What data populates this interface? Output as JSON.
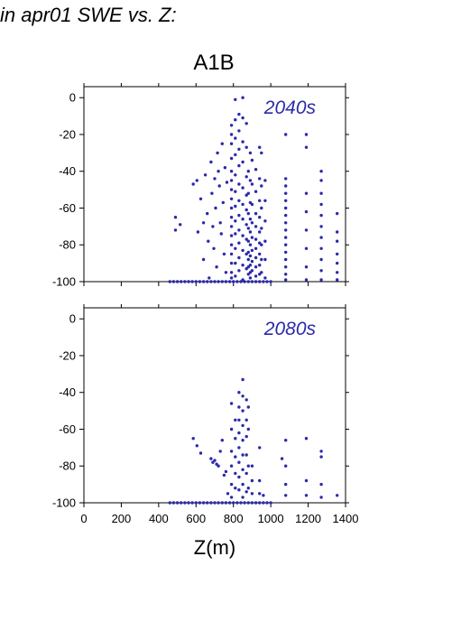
{
  "header": "in apr01 SWE vs. Z:",
  "chart_data": {
    "type": "scatter",
    "title": "A1B",
    "xlabel": "Z(m)",
    "ylabel": "",
    "xlim": [
      0,
      1400
    ],
    "ylim": [
      -100,
      6
    ],
    "x_ticks": [
      "0",
      "200",
      "400",
      "600",
      "800",
      "1000",
      "1200",
      "1400"
    ],
    "y_ticks": [
      "0",
      "-20",
      "-40",
      "-60",
      "-80",
      "-100"
    ],
    "point_color": "#2a2aaa",
    "panels": [
      {
        "label": "2040s",
        "points": [
          [
            460,
            -100
          ],
          [
            480,
            -100
          ],
          [
            500,
            -100
          ],
          [
            520,
            -100
          ],
          [
            540,
            -100
          ],
          [
            560,
            -100
          ],
          [
            580,
            -100
          ],
          [
            600,
            -100
          ],
          [
            620,
            -100
          ],
          [
            640,
            -100
          ],
          [
            660,
            -100
          ],
          [
            680,
            -100
          ],
          [
            700,
            -100
          ],
          [
            720,
            -100
          ],
          [
            740,
            -100
          ],
          [
            760,
            -100
          ],
          [
            780,
            -100
          ],
          [
            800,
            -100
          ],
          [
            820,
            -100
          ],
          [
            840,
            -100
          ],
          [
            860,
            -100
          ],
          [
            880,
            -100
          ],
          [
            900,
            -100
          ],
          [
            920,
            -100
          ],
          [
            940,
            -100
          ],
          [
            960,
            -100
          ],
          [
            980,
            -100
          ],
          [
            1000,
            -100
          ],
          [
            490,
            -65
          ],
          [
            490,
            -72
          ],
          [
            515,
            -69
          ],
          [
            585,
            -47
          ],
          [
            605,
            -45
          ],
          [
            610,
            -73
          ],
          [
            625,
            -55
          ],
          [
            640,
            -68
          ],
          [
            640,
            -88
          ],
          [
            650,
            -42
          ],
          [
            660,
            -63
          ],
          [
            665,
            -78
          ],
          [
            670,
            -98
          ],
          [
            680,
            -35
          ],
          [
            685,
            -52
          ],
          [
            690,
            -70
          ],
          [
            695,
            -82
          ],
          [
            700,
            -44
          ],
          [
            705,
            -60
          ],
          [
            710,
            -92
          ],
          [
            715,
            -30
          ],
          [
            720,
            -40
          ],
          [
            725,
            -48
          ],
          [
            730,
            -68
          ],
          [
            735,
            -74
          ],
          [
            740,
            -25
          ],
          [
            745,
            -57
          ],
          [
            750,
            -85
          ],
          [
            755,
            -38
          ],
          [
            760,
            -95
          ],
          [
            765,
            -46
          ],
          [
            790,
            -15
          ],
          [
            790,
            -20
          ],
          [
            790,
            -25
          ],
          [
            790,
            -33
          ],
          [
            790,
            -40
          ],
          [
            790,
            -45
          ],
          [
            790,
            -50
          ],
          [
            790,
            -55
          ],
          [
            790,
            -60
          ],
          [
            790,
            -65
          ],
          [
            790,
            -70
          ],
          [
            790,
            -75
          ],
          [
            790,
            -80
          ],
          [
            790,
            -85
          ],
          [
            790,
            -90
          ],
          [
            790,
            -95
          ],
          [
            790,
            -98
          ],
          [
            810,
            -1
          ],
          [
            810,
            -12
          ],
          [
            810,
            -22
          ],
          [
            810,
            -31
          ],
          [
            810,
            -42
          ],
          [
            810,
            -51
          ],
          [
            810,
            -59
          ],
          [
            810,
            -67
          ],
          [
            810,
            -74
          ],
          [
            810,
            -82
          ],
          [
            810,
            -90
          ],
          [
            810,
            -97
          ],
          [
            830,
            -9
          ],
          [
            830,
            -18
          ],
          [
            830,
            -28
          ],
          [
            830,
            -37
          ],
          [
            830,
            -47
          ],
          [
            830,
            -56
          ],
          [
            830,
            -64
          ],
          [
            830,
            -72
          ],
          [
            830,
            -79
          ],
          [
            830,
            -87
          ],
          [
            830,
            -94
          ],
          [
            850,
            0
          ],
          [
            850,
            -11
          ],
          [
            850,
            -24
          ],
          [
            850,
            -35
          ],
          [
            850,
            -49
          ],
          [
            850,
            -58
          ],
          [
            850,
            -66
          ],
          [
            850,
            -75
          ],
          [
            850,
            -83
          ],
          [
            850,
            -91
          ],
          [
            850,
            -99
          ],
          [
            870,
            -14
          ],
          [
            870,
            -27
          ],
          [
            870,
            -43
          ],
          [
            870,
            -53
          ],
          [
            870,
            -61
          ],
          [
            870,
            -69
          ],
          [
            870,
            -77
          ],
          [
            870,
            -85
          ],
          [
            870,
            -93
          ],
          [
            880,
            -40
          ],
          [
            880,
            -52
          ],
          [
            880,
            -63
          ],
          [
            880,
            -71
          ],
          [
            880,
            -78
          ],
          [
            880,
            -84
          ],
          [
            880,
            -88
          ],
          [
            880,
            -92
          ],
          [
            880,
            -96
          ],
          [
            890,
            -30
          ],
          [
            890,
            -45
          ],
          [
            890,
            -57
          ],
          [
            890,
            -66
          ],
          [
            890,
            -73
          ],
          [
            890,
            -80
          ],
          [
            890,
            -86
          ],
          [
            890,
            -91
          ],
          [
            890,
            -95
          ],
          [
            890,
            -98
          ],
          [
            900,
            -34
          ],
          [
            900,
            -47
          ],
          [
            900,
            -58
          ],
          [
            900,
            -68
          ],
          [
            900,
            -76
          ],
          [
            900,
            -83
          ],
          [
            900,
            -89
          ],
          [
            900,
            -94
          ],
          [
            920,
            -39
          ],
          [
            920,
            -51
          ],
          [
            920,
            -63
          ],
          [
            920,
            -70
          ],
          [
            920,
            -77
          ],
          [
            920,
            -82
          ],
          [
            920,
            -87
          ],
          [
            920,
            -92
          ],
          [
            920,
            -97
          ],
          [
            940,
            -27
          ],
          [
            940,
            -44
          ],
          [
            940,
            -56
          ],
          [
            940,
            -65
          ],
          [
            940,
            -73
          ],
          [
            940,
            -79
          ],
          [
            940,
            -85
          ],
          [
            940,
            -91
          ],
          [
            940,
            -96
          ],
          [
            950,
            -30
          ],
          [
            950,
            -48
          ],
          [
            950,
            -60
          ],
          [
            950,
            -71
          ],
          [
            950,
            -80
          ],
          [
            950,
            -88
          ],
          [
            950,
            -95
          ],
          [
            970,
            -45
          ],
          [
            970,
            -56
          ],
          [
            970,
            -67
          ],
          [
            970,
            -78
          ],
          [
            970,
            -88
          ],
          [
            970,
            -98
          ],
          [
            1080,
            -20
          ],
          [
            1080,
            -44
          ],
          [
            1080,
            -48
          ],
          [
            1080,
            -52
          ],
          [
            1080,
            -56
          ],
          [
            1080,
            -60
          ],
          [
            1080,
            -64
          ],
          [
            1080,
            -68
          ],
          [
            1080,
            -72
          ],
          [
            1080,
            -76
          ],
          [
            1080,
            -80
          ],
          [
            1080,
            -84
          ],
          [
            1080,
            -88
          ],
          [
            1080,
            -92
          ],
          [
            1080,
            -96
          ],
          [
            1080,
            -99
          ],
          [
            1190,
            -20
          ],
          [
            1190,
            -27
          ],
          [
            1190,
            -52
          ],
          [
            1190,
            -62
          ],
          [
            1190,
            -72
          ],
          [
            1190,
            -82
          ],
          [
            1190,
            -92
          ],
          [
            1190,
            -99
          ],
          [
            1270,
            -40
          ],
          [
            1270,
            -45
          ],
          [
            1270,
            -52
          ],
          [
            1270,
            -58
          ],
          [
            1270,
            -64
          ],
          [
            1270,
            -70
          ],
          [
            1270,
            -76
          ],
          [
            1270,
            -82
          ],
          [
            1270,
            -88
          ],
          [
            1270,
            -94
          ],
          [
            1270,
            -99
          ],
          [
            1355,
            -63
          ],
          [
            1355,
            -73
          ],
          [
            1355,
            -78
          ],
          [
            1355,
            -85
          ],
          [
            1355,
            -90
          ],
          [
            1355,
            -95
          ],
          [
            1355,
            -99
          ]
        ]
      },
      {
        "label": "2080s",
        "points": [
          [
            460,
            -100
          ],
          [
            480,
            -100
          ],
          [
            500,
            -100
          ],
          [
            520,
            -100
          ],
          [
            540,
            -100
          ],
          [
            560,
            -100
          ],
          [
            580,
            -100
          ],
          [
            600,
            -100
          ],
          [
            620,
            -100
          ],
          [
            640,
            -100
          ],
          [
            660,
            -100
          ],
          [
            680,
            -100
          ],
          [
            700,
            -100
          ],
          [
            720,
            -100
          ],
          [
            740,
            -100
          ],
          [
            760,
            -100
          ],
          [
            780,
            -100
          ],
          [
            800,
            -100
          ],
          [
            820,
            -100
          ],
          [
            840,
            -100
          ],
          [
            860,
            -100
          ],
          [
            880,
            -100
          ],
          [
            900,
            -100
          ],
          [
            920,
            -100
          ],
          [
            940,
            -100
          ],
          [
            960,
            -100
          ],
          [
            980,
            -100
          ],
          [
            1000,
            -100
          ],
          [
            585,
            -65
          ],
          [
            605,
            -69
          ],
          [
            625,
            -73
          ],
          [
            680,
            -76
          ],
          [
            690,
            -78
          ],
          [
            700,
            -77
          ],
          [
            710,
            -79
          ],
          [
            720,
            -80
          ],
          [
            730,
            -72
          ],
          [
            740,
            -66
          ],
          [
            750,
            -85
          ],
          [
            760,
            -83
          ],
          [
            770,
            -95
          ],
          [
            790,
            -46
          ],
          [
            790,
            -60
          ],
          [
            790,
            -72
          ],
          [
            790,
            -80
          ],
          [
            790,
            -90
          ],
          [
            790,
            -97
          ],
          [
            810,
            -55
          ],
          [
            810,
            -65
          ],
          [
            810,
            -75
          ],
          [
            810,
            -84
          ],
          [
            810,
            -92
          ],
          [
            830,
            -40
          ],
          [
            830,
            -48
          ],
          [
            830,
            -55
          ],
          [
            830,
            -62
          ],
          [
            830,
            -70
          ],
          [
            830,
            -78
          ],
          [
            830,
            -86
          ],
          [
            830,
            -93
          ],
          [
            850,
            -33
          ],
          [
            850,
            -42
          ],
          [
            850,
            -50
          ],
          [
            850,
            -58
          ],
          [
            850,
            -66
          ],
          [
            850,
            -74
          ],
          [
            850,
            -82
          ],
          [
            850,
            -90
          ],
          [
            850,
            -97
          ],
          [
            870,
            -44
          ],
          [
            870,
            -55
          ],
          [
            870,
            -64
          ],
          [
            870,
            -74
          ],
          [
            870,
            -84
          ],
          [
            870,
            -94
          ],
          [
            880,
            -48
          ],
          [
            880,
            -60
          ],
          [
            880,
            -80
          ],
          [
            880,
            -92
          ],
          [
            900,
            -80
          ],
          [
            900,
            -88
          ],
          [
            900,
            -95
          ],
          [
            940,
            -70
          ],
          [
            940,
            -88
          ],
          [
            940,
            -95
          ],
          [
            960,
            -96
          ],
          [
            1060,
            -76
          ],
          [
            1080,
            -66
          ],
          [
            1080,
            -80
          ],
          [
            1080,
            -90
          ],
          [
            1080,
            -96
          ],
          [
            1190,
            -65
          ],
          [
            1190,
            -88
          ],
          [
            1190,
            -96
          ],
          [
            1270,
            -72
          ],
          [
            1270,
            -75
          ],
          [
            1270,
            -90
          ],
          [
            1270,
            -97
          ],
          [
            1355,
            -96
          ]
        ]
      }
    ]
  }
}
